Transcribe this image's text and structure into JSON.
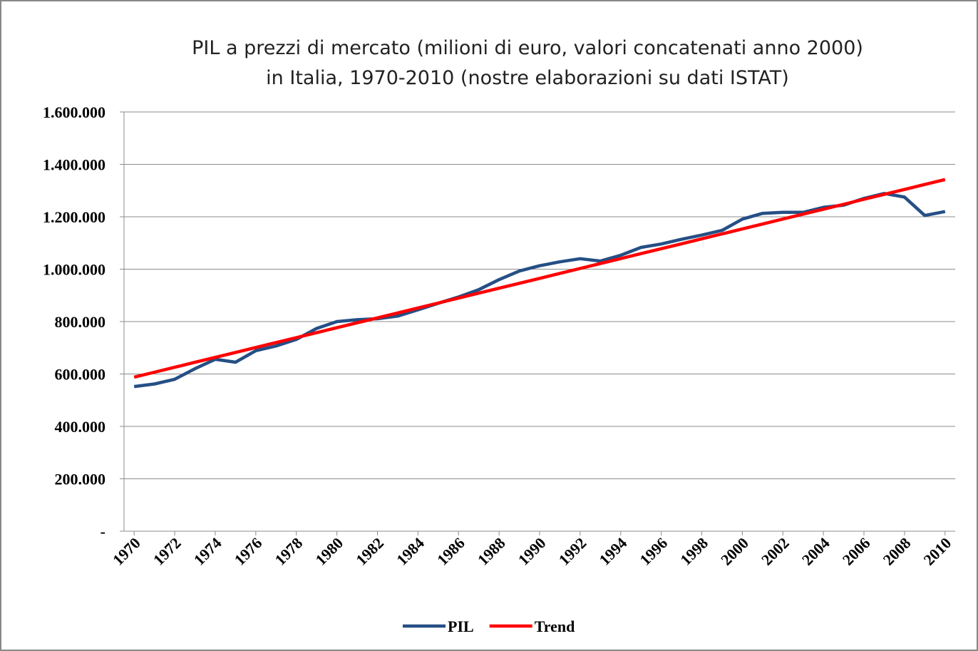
{
  "chart_data": {
    "type": "line",
    "title": [
      "PIL a prezzi di mercato (milioni di euro, valori concatenati anno 2000)",
      "in Italia, 1970-2010 (nostre elaborazioni su dati ISTAT)"
    ],
    "x": [
      1970,
      1971,
      1972,
      1973,
      1974,
      1975,
      1976,
      1977,
      1978,
      1979,
      1980,
      1981,
      1982,
      1983,
      1984,
      1985,
      1986,
      1987,
      1988,
      1989,
      1990,
      1991,
      1992,
      1993,
      1994,
      1995,
      1996,
      1997,
      1998,
      1999,
      2000,
      2001,
      2002,
      2003,
      2004,
      2005,
      2006,
      2007,
      2008,
      2009,
      2010
    ],
    "xlim": [
      1969.5,
      2010.5
    ],
    "xticks": [
      1970,
      1972,
      1974,
      1976,
      1978,
      1980,
      1982,
      1984,
      1986,
      1988,
      1990,
      1992,
      1994,
      1996,
      1998,
      2000,
      2002,
      2004,
      2006,
      2008,
      2010
    ],
    "ylim": [
      0,
      1600000
    ],
    "yticks": [
      {
        "value": 0,
        "label": "-"
      },
      {
        "value": 200000,
        "label": "200.000"
      },
      {
        "value": 400000,
        "label": "400.000"
      },
      {
        "value": 600000,
        "label": "600.000"
      },
      {
        "value": 800000,
        "label": "800.000"
      },
      {
        "value": 1000000,
        "label": "1.000.000"
      },
      {
        "value": 1200000,
        "label": "1.200.000"
      },
      {
        "value": 1400000,
        "label": "1.400.000"
      },
      {
        "value": 1600000,
        "label": "1.600.000"
      }
    ],
    "grid": true,
    "legend": "bottom",
    "series": [
      {
        "name": "PIL",
        "color": "#254f85",
        "values": [
          552000,
          562000,
          580000,
          620000,
          656000,
          645000,
          689000,
          707000,
          732000,
          774000,
          800000,
          807000,
          811000,
          821000,
          845000,
          870000,
          894000,
          922000,
          960000,
          993000,
          1013000,
          1028000,
          1040000,
          1031000,
          1053000,
          1083000,
          1096000,
          1114000,
          1130000,
          1148000,
          1191000,
          1213000,
          1217000,
          1217000,
          1236000,
          1244000,
          1270000,
          1289000,
          1275000,
          1205000,
          1220000
        ]
      },
      {
        "name": "Trend",
        "color": "#ff0000",
        "values": [
          588000,
          606850,
          625700,
          644550,
          663400,
          682250,
          701100,
          719950,
          738800,
          757650,
          776500,
          795350,
          814200,
          833050,
          851900,
          870750,
          889600,
          908450,
          927300,
          946150,
          965000,
          983850,
          1002700,
          1021550,
          1040400,
          1059250,
          1078100,
          1096950,
          1115800,
          1134650,
          1153500,
          1172350,
          1191200,
          1210050,
          1228900,
          1247750,
          1266600,
          1285450,
          1304300,
          1323150,
          1342000
        ]
      }
    ]
  }
}
